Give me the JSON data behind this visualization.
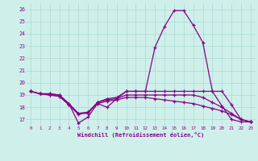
{
  "xlabel": "Windchill (Refroidissement éolien,°C)",
  "background_color": "#cff0ea",
  "grid_color": "#a8d8d0",
  "line_color": "#880088",
  "x_labels": [
    "0",
    "1",
    "2",
    "3",
    "4",
    "5",
    "6",
    "7",
    "8",
    "9",
    "10",
    "11",
    "12",
    "13",
    "14",
    "15",
    "16",
    "17",
    "18",
    "19",
    "20",
    "21",
    "22",
    "23"
  ],
  "ylim": [
    16.5,
    26.5
  ],
  "yticks": [
    17,
    18,
    19,
    20,
    21,
    22,
    23,
    24,
    25,
    26
  ],
  "series": [
    [
      19.3,
      19.1,
      19.1,
      19.0,
      18.3,
      16.7,
      17.2,
      18.3,
      18.0,
      18.7,
      19.3,
      19.3,
      19.3,
      22.9,
      24.6,
      25.9,
      25.9,
      24.7,
      23.3,
      19.3,
      18.1,
      17.0,
      16.8,
      16.8
    ],
    [
      19.3,
      19.1,
      19.1,
      19.0,
      18.3,
      17.5,
      17.5,
      18.4,
      18.7,
      18.8,
      19.3,
      19.3,
      19.3,
      19.3,
      19.3,
      19.3,
      19.3,
      19.3,
      19.3,
      19.3,
      19.3,
      18.2,
      17.0,
      16.8
    ],
    [
      19.3,
      19.1,
      19.0,
      18.9,
      18.2,
      17.5,
      17.6,
      18.4,
      18.6,
      18.7,
      19.0,
      19.0,
      19.0,
      19.0,
      19.0,
      19.0,
      19.0,
      19.0,
      18.8,
      18.4,
      18.0,
      17.5,
      17.0,
      16.8
    ],
    [
      19.3,
      19.1,
      19.0,
      18.9,
      18.2,
      17.4,
      17.6,
      18.3,
      18.5,
      18.6,
      18.8,
      18.8,
      18.8,
      18.7,
      18.6,
      18.5,
      18.4,
      18.3,
      18.1,
      17.9,
      17.7,
      17.4,
      17.0,
      16.8
    ]
  ]
}
